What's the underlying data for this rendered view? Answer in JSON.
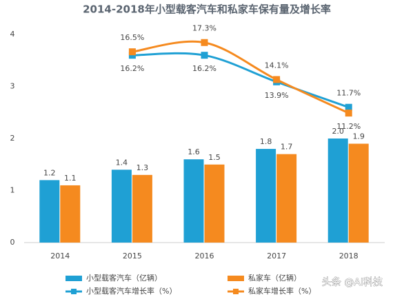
{
  "chart_data": {
    "type": "bar",
    "title": "2014-2018年小型载客汽车和私家车保有量及增长率",
    "categories": [
      "2014",
      "2015",
      "2016",
      "2017",
      "2018"
    ],
    "series": [
      {
        "name": "小型载客汽车（亿辆）",
        "type": "bar",
        "color": "#1fa0d4",
        "values": [
          1.2,
          1.4,
          1.6,
          1.8,
          2.0
        ],
        "value_labels": [
          "1.2",
          "1.4",
          "1.6",
          "1.8",
          "2.0"
        ]
      },
      {
        "name": "私家车（亿辆）",
        "type": "bar",
        "color": "#f58a1f",
        "values": [
          1.1,
          1.3,
          1.5,
          1.7,
          1.9
        ]
      },
      {
        "name": "小型载客汽车增长率（%）",
        "type": "line",
        "axis": "y2",
        "color": "#1fa0d4",
        "values": [
          null,
          16.2,
          16.2,
          13.9,
          11.7
        ],
        "value_labels": [
          null,
          "16.2%",
          "16.2%",
          "13.9%",
          "11.7%"
        ]
      },
      {
        "name": "私家车增长率（%）",
        "type": "line",
        "axis": "y2",
        "color": "#f58a1f",
        "values": [
          null,
          16.5,
          17.3,
          14.1,
          11.2
        ],
        "value_labels": [
          null,
          "16.5%",
          "17.3%",
          "14.1%",
          "11.2%"
        ]
      }
    ],
    "ylim": [
      0,
      4
    ],
    "yticks": [
      0,
      1,
      2,
      3,
      4
    ],
    "y2lim": [
      0,
      18
    ],
    "grid": false,
    "legend": "bottom",
    "watermark": "头条 @AI科技"
  }
}
